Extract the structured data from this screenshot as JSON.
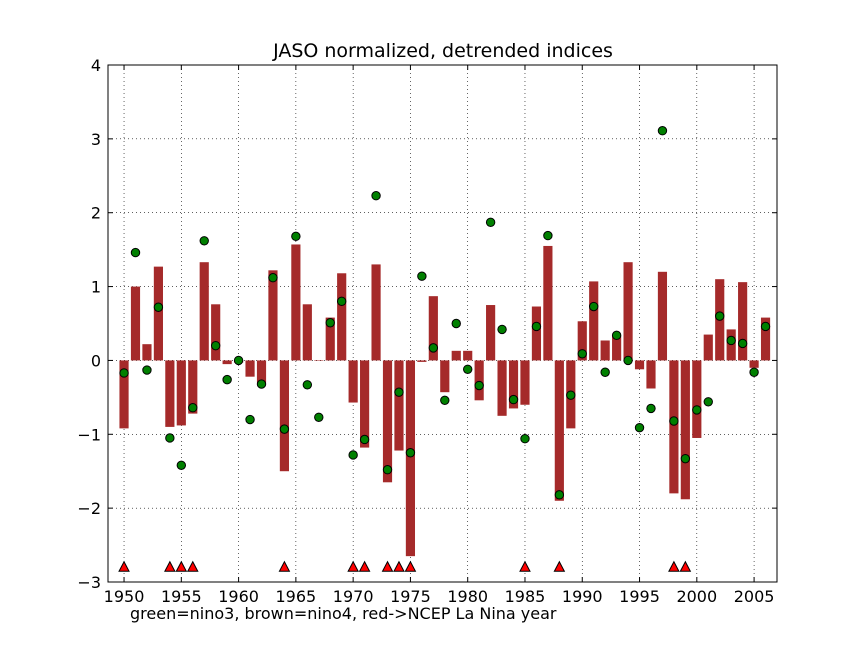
{
  "chart_data": {
    "type": "bar",
    "title": "JASO normalized, detrended indices",
    "caption": "green=nino3, brown=nino4, red->NCEP La Nina year",
    "xlim": [
      1948.6,
      2007.0
    ],
    "ylim": [
      -3,
      4
    ],
    "xticks": [
      1950,
      1955,
      1960,
      1965,
      1970,
      1975,
      1980,
      1985,
      1990,
      1995,
      2000,
      2005
    ],
    "yticks": [
      -3,
      -2,
      -1,
      0,
      1,
      2,
      3,
      4
    ],
    "grid": true,
    "years": [
      1950,
      1951,
      1952,
      1953,
      1954,
      1955,
      1956,
      1957,
      1958,
      1959,
      1960,
      1961,
      1962,
      1963,
      1964,
      1965,
      1966,
      1967,
      1968,
      1969,
      1970,
      1971,
      1972,
      1973,
      1974,
      1975,
      1976,
      1977,
      1978,
      1979,
      1980,
      1981,
      1982,
      1983,
      1984,
      1985,
      1986,
      1987,
      1988,
      1989,
      1990,
      1991,
      1992,
      1993,
      1994,
      1995,
      1996,
      1997,
      1998,
      1999,
      2000,
      2001,
      2002,
      2003,
      2004,
      2005,
      2006
    ],
    "series": [
      {
        "name": "nino4",
        "kind": "bar",
        "color": "#a52a2a",
        "values": [
          -0.92,
          1.0,
          0.22,
          1.27,
          -0.9,
          -0.88,
          -0.72,
          1.33,
          0.76,
          -0.05,
          -0.03,
          -0.22,
          -0.3,
          1.22,
          -1.5,
          1.57,
          0.76,
          0.0,
          0.58,
          1.18,
          -0.57,
          -1.18,
          1.3,
          -1.65,
          -1.22,
          -2.65,
          -0.02,
          0.87,
          -0.43,
          0.13,
          0.13,
          -0.54,
          0.75,
          -0.75,
          -0.65,
          -0.6,
          0.73,
          1.55,
          -1.9,
          -0.92,
          0.53,
          1.07,
          0.27,
          0.33,
          1.33,
          -0.12,
          -0.38,
          1.2,
          -1.8,
          -1.88,
          -1.05,
          0.35,
          1.1,
          0.42,
          1.06,
          -0.1,
          0.58
        ]
      },
      {
        "name": "nino3",
        "kind": "marker",
        "color": "#008000",
        "values": [
          -0.17,
          1.46,
          -0.13,
          0.72,
          -1.05,
          -1.42,
          -0.64,
          1.62,
          0.2,
          -0.26,
          0.0,
          -0.8,
          -0.32,
          1.12,
          -0.93,
          1.68,
          -0.33,
          -0.77,
          0.51,
          0.8,
          -1.28,
          -1.07,
          2.23,
          -1.48,
          -0.43,
          -1.25,
          1.14,
          0.17,
          -0.54,
          0.5,
          -0.12,
          -0.34,
          1.87,
          0.42,
          -0.53,
          -1.06,
          0.46,
          1.69,
          -1.82,
          -0.47,
          0.09,
          0.73,
          -0.16,
          0.34,
          0.0,
          -0.91,
          -0.65,
          3.11,
          -0.82,
          -1.33,
          -0.67,
          -0.56,
          0.6,
          0.27,
          0.23,
          -0.16,
          0.46
        ]
      },
      {
        "name": "NCEP La Nina year",
        "kind": "triangle",
        "color": "#ff0000",
        "y": -2.8,
        "years": [
          1950,
          1954,
          1955,
          1956,
          1964,
          1970,
          1971,
          1973,
          1974,
          1975,
          1985,
          1988,
          1998,
          1999
        ]
      }
    ]
  }
}
